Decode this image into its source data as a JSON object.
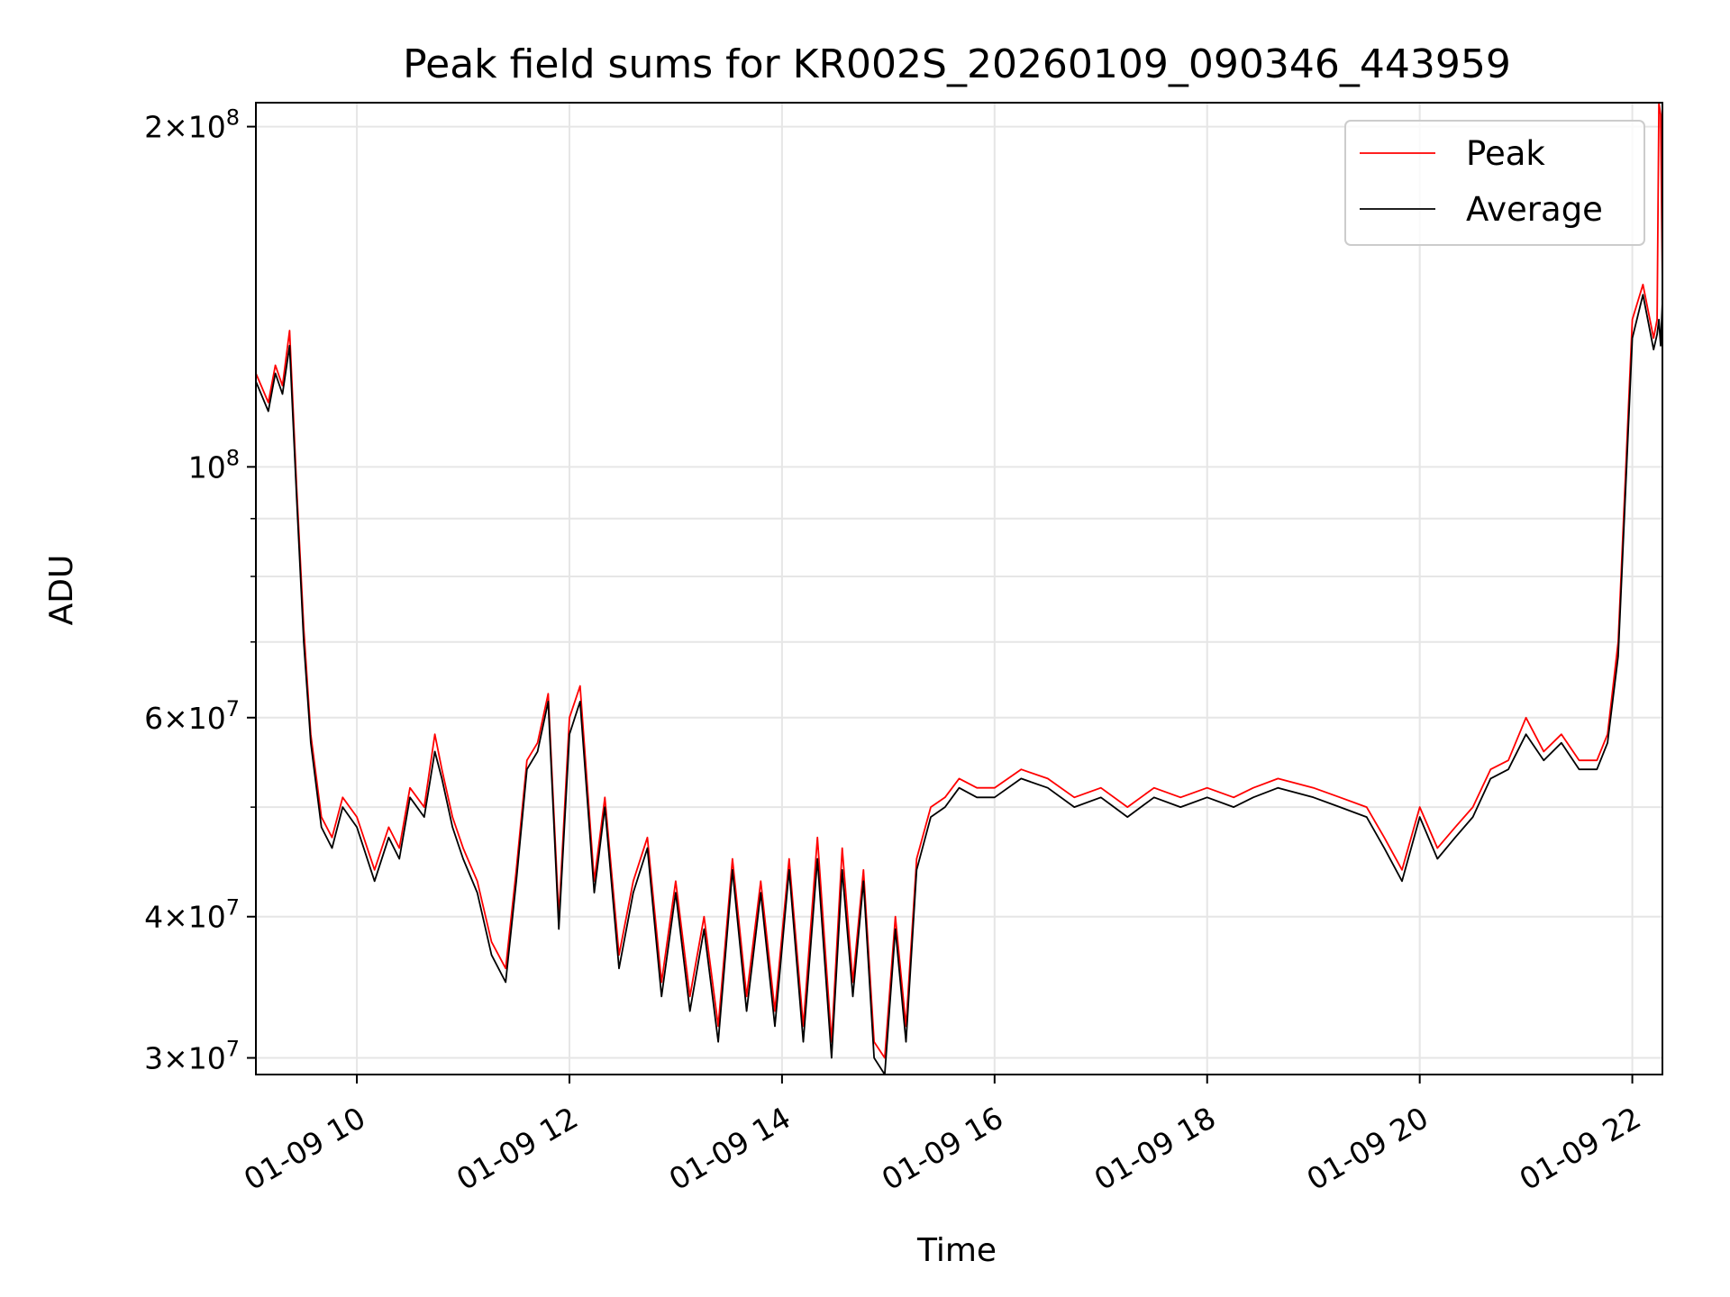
{
  "chart_data": {
    "type": "line",
    "title": "Peak field sums for KR002S_20260109_090346_443959",
    "xlabel": "Time",
    "ylabel": "ADU",
    "xlim": [
      "01-09 09:03",
      "01-09 22:17"
    ],
    "ylim": [
      29000000,
      210000000
    ],
    "yscale": "log",
    "grid": true,
    "legend_position": "top-right",
    "x_ticks": [
      {
        "t": "01-09 10:00",
        "label": "01-09 10"
      },
      {
        "t": "01-09 12:00",
        "label": "01-09 12"
      },
      {
        "t": "01-09 14:00",
        "label": "01-09 14"
      },
      {
        "t": "01-09 16:00",
        "label": "01-09 16"
      },
      {
        "t": "01-09 18:00",
        "label": "01-09 18"
      },
      {
        "t": "01-09 20:00",
        "label": "01-09 20"
      },
      {
        "t": "01-09 22:00",
        "label": "01-09 22"
      }
    ],
    "y_ticks": [
      {
        "v": 30000000,
        "mant": "3",
        "exp": "7"
      },
      {
        "v": 40000000,
        "mant": "4",
        "exp": "7"
      },
      {
        "v": 60000000,
        "mant": "6",
        "exp": "7"
      },
      {
        "v": 100000000,
        "mant": "",
        "exp": "8"
      },
      {
        "v": 200000000,
        "mant": "2",
        "exp": "8"
      }
    ],
    "y_minor_ticks": [
      50000000,
      70000000,
      80000000,
      90000000
    ],
    "series": [
      {
        "name": "Peak",
        "color": "#ff0000",
        "x": [
          "01-09 09:03",
          "01-09 09:10",
          "01-09 09:14",
          "01-09 09:18",
          "01-09 09:22",
          "01-09 09:26",
          "01-09 09:30",
          "01-09 09:34",
          "01-09 09:40",
          "01-09 09:46",
          "01-09 09:52",
          "01-09 10:00",
          "01-09 10:10",
          "01-09 10:18",
          "01-09 10:24",
          "01-09 10:30",
          "01-09 10:38",
          "01-09 10:44",
          "01-09 10:48",
          "01-09 10:54",
          "01-09 11:00",
          "01-09 11:08",
          "01-09 11:16",
          "01-09 11:24",
          "01-09 11:30",
          "01-09 11:36",
          "01-09 11:42",
          "01-09 11:48",
          "01-09 11:54",
          "01-09 12:00",
          "01-09 12:06",
          "01-09 12:14",
          "01-09 12:20",
          "01-09 12:28",
          "01-09 12:36",
          "01-09 12:44",
          "01-09 12:52",
          "01-09 13:00",
          "01-09 13:08",
          "01-09 13:16",
          "01-09 13:24",
          "01-09 13:32",
          "01-09 13:40",
          "01-09 13:48",
          "01-09 13:56",
          "01-09 14:04",
          "01-09 14:12",
          "01-09 14:20",
          "01-09 14:28",
          "01-09 14:34",
          "01-09 14:40",
          "01-09 14:46",
          "01-09 14:52",
          "01-09 14:58",
          "01-09 15:04",
          "01-09 15:10",
          "01-09 15:16",
          "01-09 15:24",
          "01-09 15:32",
          "01-09 15:40",
          "01-09 15:50",
          "01-09 16:00",
          "01-09 16:15",
          "01-09 16:30",
          "01-09 16:45",
          "01-09 17:00",
          "01-09 17:15",
          "01-09 17:30",
          "01-09 17:45",
          "01-09 18:00",
          "01-09 18:15",
          "01-09 18:26",
          "01-09 18:40",
          "01-09 19:00",
          "01-09 19:15",
          "01-09 19:30",
          "01-09 19:40",
          "01-09 19:50",
          "01-09 20:00",
          "01-09 20:10",
          "01-09 20:20",
          "01-09 20:30",
          "01-09 20:40",
          "01-09 20:50",
          "01-09 21:00",
          "01-09 21:10",
          "01-09 21:20",
          "01-09 21:30",
          "01-09 21:40",
          "01-09 21:46",
          "01-09 21:52",
          "01-09 22:00",
          "01-09 22:06",
          "01-09 22:12",
          "01-09 22:14",
          "01-09 22:15",
          "01-09 22:16",
          "01-09 22:17"
        ],
        "y": [
          121000000,
          114000000,
          123000000,
          118000000,
          132000000,
          96000000,
          72000000,
          58000000,
          49000000,
          47000000,
          51000000,
          49000000,
          44000000,
          48000000,
          46000000,
          52000000,
          50000000,
          58000000,
          54000000,
          49000000,
          46000000,
          43000000,
          38000000,
          36000000,
          44000000,
          55000000,
          57000000,
          63000000,
          40000000,
          60000000,
          64000000,
          43000000,
          51000000,
          37000000,
          43000000,
          47000000,
          35000000,
          43000000,
          34000000,
          40000000,
          32000000,
          45000000,
          34000000,
          43000000,
          33000000,
          45000000,
          32000000,
          47000000,
          31000000,
          46000000,
          35000000,
          44000000,
          31000000,
          30000000,
          40000000,
          32000000,
          45000000,
          50000000,
          51000000,
          53000000,
          52000000,
          52000000,
          54000000,
          53000000,
          51000000,
          52000000,
          50000000,
          52000000,
          51000000,
          52000000,
          51000000,
          52000000,
          53000000,
          52000000,
          51000000,
          50000000,
          47000000,
          44000000,
          50000000,
          46000000,
          48000000,
          50000000,
          54000000,
          55000000,
          60000000,
          56000000,
          58000000,
          55000000,
          55000000,
          58000000,
          70000000,
          135000000,
          145000000,
          130000000,
          135000000,
          210000000,
          205000000,
          145000000
        ]
      },
      {
        "name": "Average",
        "color": "#000000",
        "x": [
          "01-09 09:03",
          "01-09 09:10",
          "01-09 09:14",
          "01-09 09:18",
          "01-09 09:22",
          "01-09 09:26",
          "01-09 09:30",
          "01-09 09:34",
          "01-09 09:40",
          "01-09 09:46",
          "01-09 09:52",
          "01-09 10:00",
          "01-09 10:10",
          "01-09 10:18",
          "01-09 10:24",
          "01-09 10:30",
          "01-09 10:38",
          "01-09 10:44",
          "01-09 10:48",
          "01-09 10:54",
          "01-09 11:00",
          "01-09 11:08",
          "01-09 11:16",
          "01-09 11:24",
          "01-09 11:30",
          "01-09 11:36",
          "01-09 11:42",
          "01-09 11:48",
          "01-09 11:54",
          "01-09 12:00",
          "01-09 12:06",
          "01-09 12:14",
          "01-09 12:20",
          "01-09 12:28",
          "01-09 12:36",
          "01-09 12:44",
          "01-09 12:52",
          "01-09 13:00",
          "01-09 13:08",
          "01-09 13:16",
          "01-09 13:24",
          "01-09 13:32",
          "01-09 13:40",
          "01-09 13:48",
          "01-09 13:56",
          "01-09 14:04",
          "01-09 14:12",
          "01-09 14:20",
          "01-09 14:28",
          "01-09 14:34",
          "01-09 14:40",
          "01-09 14:46",
          "01-09 14:52",
          "01-09 14:58",
          "01-09 15:04",
          "01-09 15:10",
          "01-09 15:16",
          "01-09 15:24",
          "01-09 15:32",
          "01-09 15:40",
          "01-09 15:50",
          "01-09 16:00",
          "01-09 16:15",
          "01-09 16:30",
          "01-09 16:45",
          "01-09 17:00",
          "01-09 17:15",
          "01-09 17:30",
          "01-09 17:45",
          "01-09 18:00",
          "01-09 18:15",
          "01-09 18:26",
          "01-09 18:40",
          "01-09 19:00",
          "01-09 19:15",
          "01-09 19:30",
          "01-09 19:40",
          "01-09 19:50",
          "01-09 20:00",
          "01-09 20:10",
          "01-09 20:20",
          "01-09 20:30",
          "01-09 20:40",
          "01-09 20:50",
          "01-09 21:00",
          "01-09 21:10",
          "01-09 21:20",
          "01-09 21:30",
          "01-09 21:40",
          "01-09 21:46",
          "01-09 21:52",
          "01-09 22:00",
          "01-09 22:06",
          "01-09 22:12",
          "01-09 22:14",
          "01-09 22:15",
          "01-09 22:16",
          "01-09 22:17"
        ],
        "y": [
          119000000,
          112000000,
          121000000,
          116000000,
          128000000,
          94000000,
          70000000,
          57000000,
          48000000,
          46000000,
          50000000,
          48000000,
          43000000,
          47000000,
          45000000,
          51000000,
          49000000,
          56000000,
          53000000,
          48000000,
          45000000,
          42000000,
          37000000,
          35000000,
          43000000,
          54000000,
          56000000,
          62000000,
          39000000,
          58000000,
          62000000,
          42000000,
          50000000,
          36000000,
          42000000,
          46000000,
          34000000,
          42000000,
          33000000,
          39000000,
          31000000,
          44000000,
          33000000,
          42000000,
          32000000,
          44000000,
          31000000,
          45000000,
          30000000,
          44000000,
          34000000,
          43000000,
          30000000,
          29000000,
          39000000,
          31000000,
          44000000,
          49000000,
          50000000,
          52000000,
          51000000,
          51000000,
          53000000,
          52000000,
          50000000,
          51000000,
          49000000,
          51000000,
          50000000,
          51000000,
          50000000,
          51000000,
          52000000,
          51000000,
          50000000,
          49000000,
          46000000,
          43000000,
          49000000,
          45000000,
          47000000,
          49000000,
          53000000,
          54000000,
          58000000,
          55000000,
          57000000,
          54000000,
          54000000,
          57000000,
          68000000,
          130000000,
          142000000,
          127000000,
          131000000,
          135000000,
          128000000,
          140000000
        ]
      }
    ]
  }
}
